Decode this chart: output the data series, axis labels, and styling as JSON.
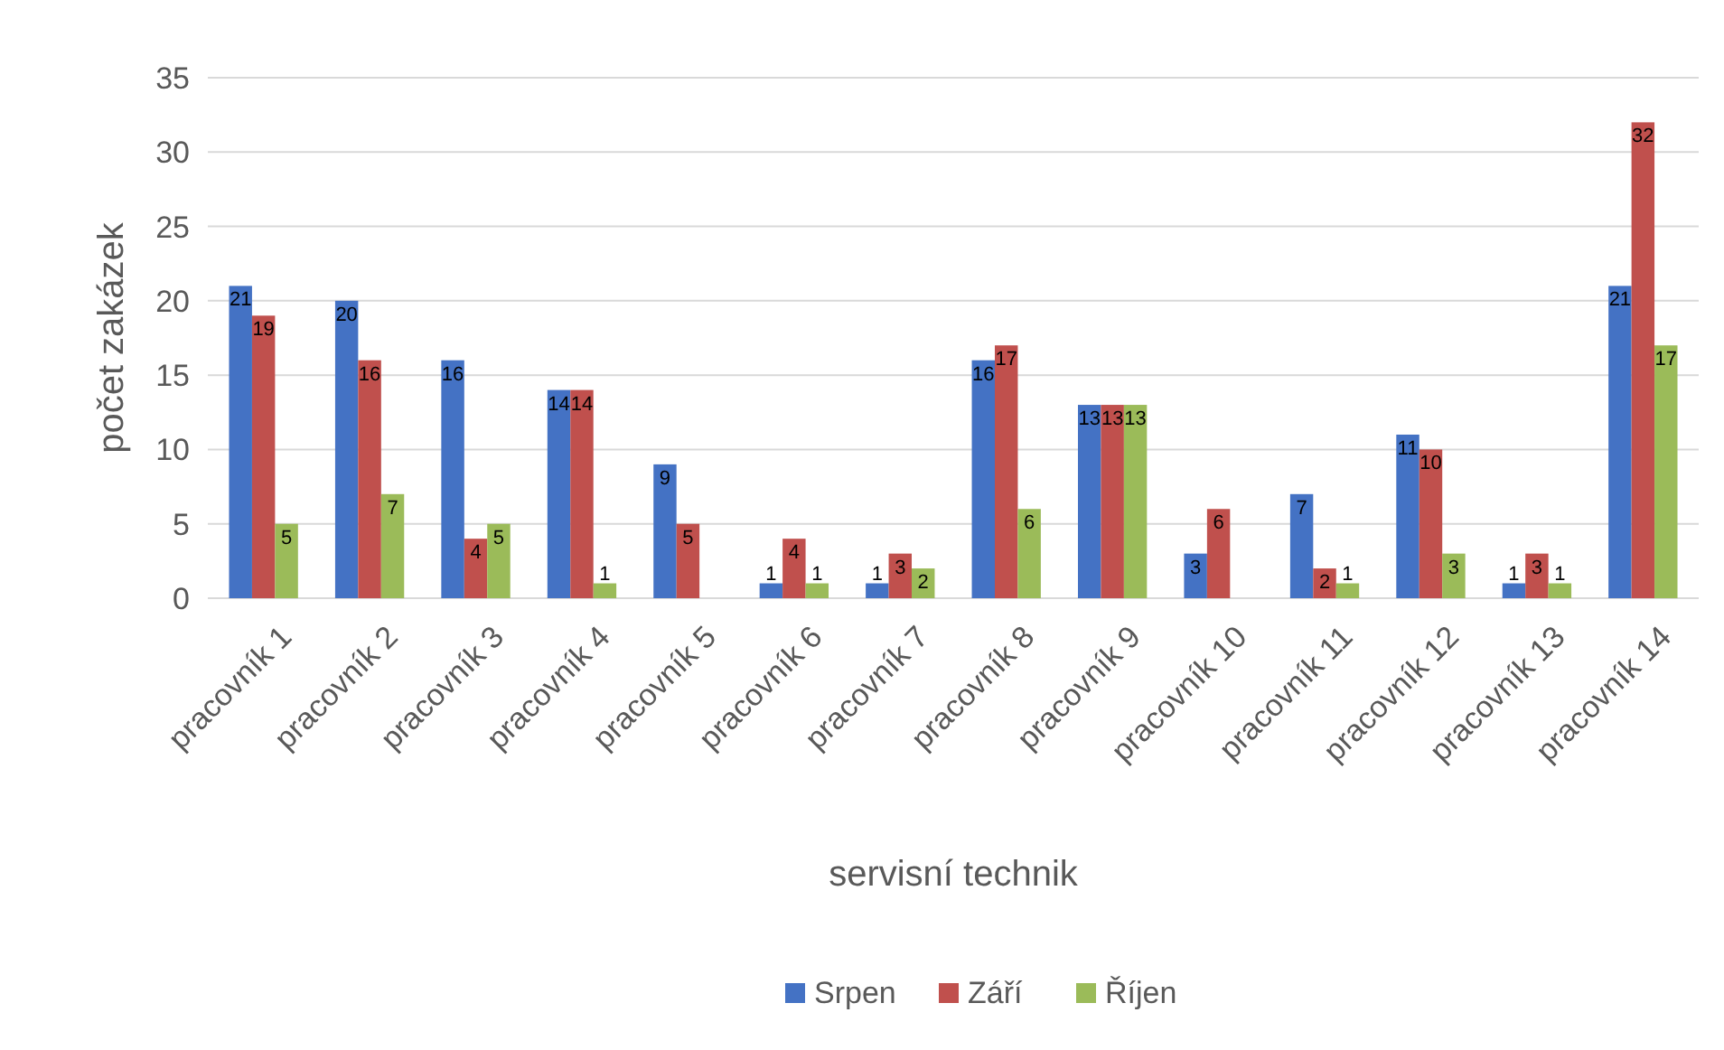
{
  "chart_data": {
    "type": "bar",
    "xlabel": "servisní technik",
    "ylabel": "počet zakázek",
    "categories": [
      "pracovník 1",
      "pracovník 2",
      "pracovník 3",
      "pracovník 4",
      "pracovník 5",
      "pracovník 6",
      "pracovník 7",
      "pracovník 8",
      "pracovník 9",
      "pracovník 10",
      "pracovník 11",
      "pracovník 12",
      "pracovník 13",
      "pracovník 14"
    ],
    "series": [
      {
        "name": "Srpen",
        "color": "#4472c4",
        "values": [
          21,
          20,
          16,
          14,
          9,
          1,
          1,
          16,
          13,
          3,
          7,
          11,
          1,
          21
        ]
      },
      {
        "name": "Září",
        "color": "#c0504d",
        "values": [
          19,
          16,
          4,
          14,
          5,
          4,
          3,
          17,
          13,
          6,
          2,
          10,
          3,
          32
        ]
      },
      {
        "name": "Říjen",
        "color": "#9bbb59",
        "values": [
          5,
          7,
          5,
          1,
          null,
          1,
          2,
          6,
          13,
          null,
          1,
          3,
          1,
          17
        ]
      }
    ],
    "ylim": [
      0,
      35
    ],
    "yticks": [
      0,
      5,
      10,
      15,
      20,
      25,
      30,
      35
    ],
    "grid": "y",
    "legend": "bottom",
    "data_labels": true
  }
}
